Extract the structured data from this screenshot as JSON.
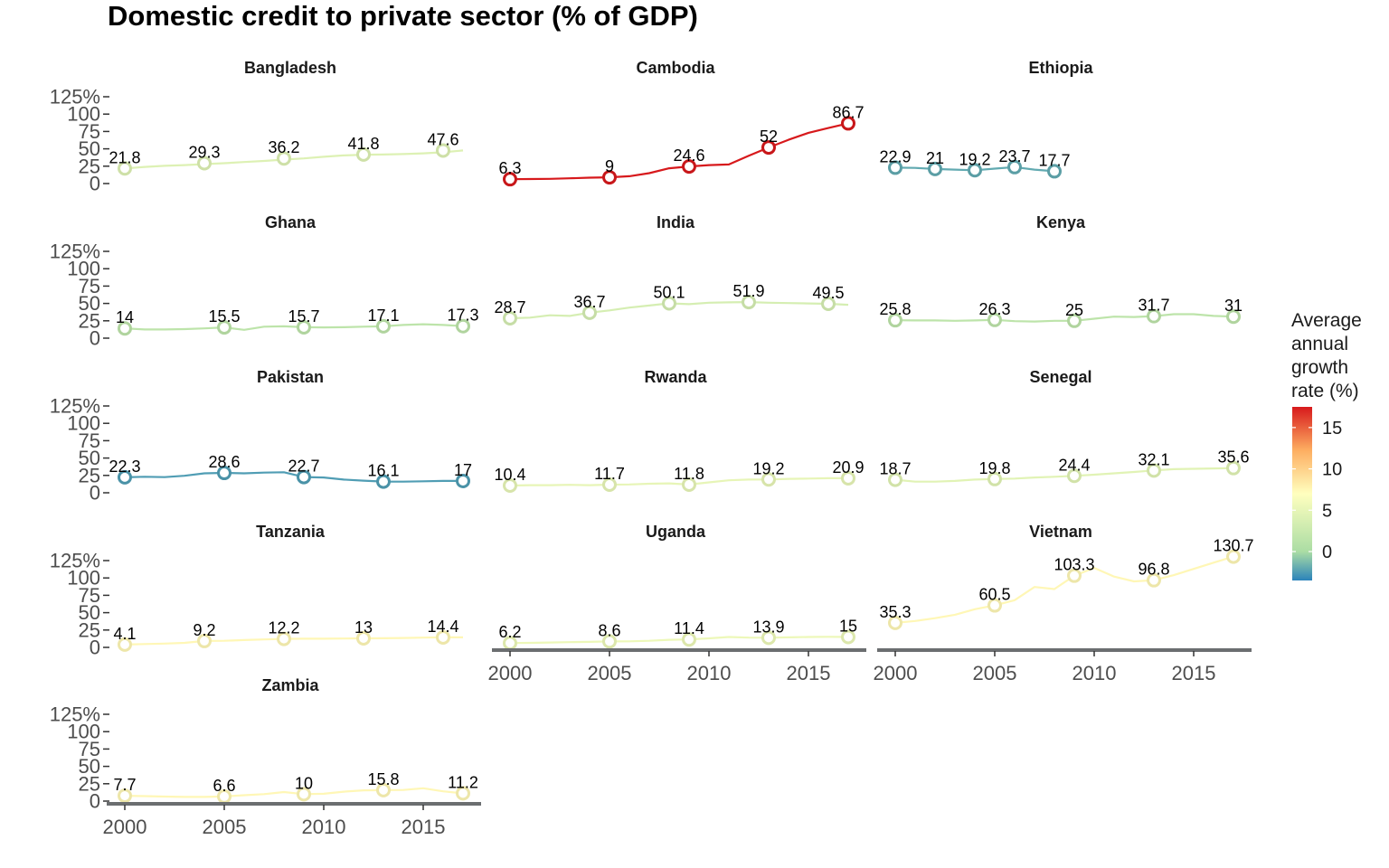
{
  "chart_data": {
    "type": "line",
    "title": "Domestic credit to private sector (% of GDP)",
    "y_ticks": [
      "0",
      "25",
      "50",
      "75",
      "100",
      "125%"
    ],
    "ylim": [
      0,
      125
    ],
    "x_ticks": [
      "2000",
      "2005",
      "2010",
      "2015"
    ],
    "xlim": [
      2000,
      2017
    ],
    "legend": {
      "title_lines": [
        "Average",
        "annual",
        "growth",
        "rate (%)"
      ],
      "ticks": [
        "0",
        "5",
        "10",
        "15"
      ],
      "range": [
        -3.5,
        17.5
      ],
      "placement": "right"
    },
    "panels": [
      {
        "name": "Bangladesh",
        "growth_rate": 4.2,
        "line": {
          "x": [
            2000,
            2001,
            2002,
            2003,
            2004,
            2005,
            2006,
            2007,
            2008,
            2009,
            2010,
            2011,
            2012,
            2013,
            2014,
            2015,
            2016,
            2017
          ],
          "y": [
            21.8,
            24,
            25.5,
            26.5,
            28,
            29.3,
            31,
            32.5,
            34.5,
            36.2,
            38.5,
            40.5,
            41.5,
            41.8,
            42.5,
            43.5,
            45,
            47.6
          ]
        },
        "points": {
          "x": [
            2000,
            2004,
            2008,
            2012,
            2016
          ],
          "y": [
            21.8,
            29.3,
            36.2,
            41.8,
            47.6
          ]
        }
      },
      {
        "name": "Cambodia",
        "growth_rate": 17.5,
        "line": {
          "x": [
            2000,
            2001,
            2002,
            2003,
            2004,
            2005,
            2006,
            2007,
            2008,
            2009,
            2010,
            2011,
            2012,
            2013,
            2014,
            2015,
            2016,
            2017
          ],
          "y": [
            6.3,
            6.5,
            6.8,
            7.5,
            8.5,
            9,
            10.5,
            15,
            22,
            24.6,
            26.5,
            27.5,
            40,
            52,
            63,
            73,
            80,
            86.7
          ]
        },
        "points": {
          "x": [
            2000,
            2005,
            2009,
            2013,
            2017
          ],
          "y": [
            6.3,
            9,
            24.6,
            52,
            86.7
          ]
        }
      },
      {
        "name": "Ethiopia",
        "growth_rate": -2.0,
        "line": {
          "x": [
            2000,
            2001,
            2002,
            2003,
            2004,
            2005,
            2006,
            2007,
            2008
          ],
          "y": [
            22.9,
            22.5,
            21,
            20,
            19.2,
            21.5,
            23.7,
            20,
            17.7
          ]
        },
        "points": {
          "x": [
            2000,
            2002,
            2004,
            2006,
            2008
          ],
          "y": [
            22.9,
            21,
            19.2,
            23.7,
            17.7
          ]
        }
      },
      {
        "name": "Ghana",
        "growth_rate": 1.5,
        "line": {
          "x": [
            2000,
            2001,
            2002,
            2003,
            2004,
            2005,
            2006,
            2007,
            2008,
            2009,
            2010,
            2011,
            2012,
            2013,
            2014,
            2015,
            2016,
            2017
          ],
          "y": [
            14,
            12.5,
            12.5,
            13,
            14,
            15.5,
            12,
            16.5,
            17,
            15.7,
            15.5,
            15.8,
            16.5,
            17.1,
            19,
            20,
            19,
            17.3
          ]
        },
        "points": {
          "x": [
            2000,
            2005,
            2009,
            2013,
            2017
          ],
          "y": [
            14,
            15.5,
            15.7,
            17.1,
            17.3
          ]
        }
      },
      {
        "name": "India",
        "growth_rate": 3.5,
        "line": {
          "x": [
            2000,
            2001,
            2002,
            2003,
            2004,
            2005,
            2006,
            2007,
            2008,
            2009,
            2010,
            2011,
            2012,
            2013,
            2014,
            2015,
            2016,
            2017
          ],
          "y": [
            28.7,
            29.5,
            33,
            32,
            36.7,
            40,
            44,
            47,
            50.1,
            49,
            51,
            51.5,
            51.9,
            51,
            50.5,
            50,
            49.5,
            48
          ]
        },
        "points": {
          "x": [
            2000,
            2004,
            2008,
            2012,
            2016
          ],
          "y": [
            28.7,
            36.7,
            50.1,
            51.9,
            49.5
          ]
        }
      },
      {
        "name": "Kenya",
        "growth_rate": 1.5,
        "line": {
          "x": [
            2000,
            2001,
            2002,
            2003,
            2004,
            2005,
            2006,
            2007,
            2008,
            2009,
            2010,
            2011,
            2012,
            2013,
            2014,
            2015,
            2016,
            2017
          ],
          "y": [
            25.8,
            25.5,
            25.5,
            25,
            25.5,
            26.3,
            24.5,
            24,
            25,
            25,
            28,
            31,
            30.5,
            31.7,
            34.5,
            34.5,
            32,
            31
          ]
        },
        "points": {
          "x": [
            2000,
            2005,
            2009,
            2013,
            2017
          ],
          "y": [
            25.8,
            26.3,
            25,
            31.7,
            31
          ]
        }
      },
      {
        "name": "Pakistan",
        "growth_rate": -2.5,
        "line": {
          "x": [
            2000,
            2001,
            2002,
            2003,
            2004,
            2005,
            2006,
            2007,
            2008,
            2009,
            2010,
            2011,
            2012,
            2013,
            2014,
            2015,
            2016,
            2017
          ],
          "y": [
            22.3,
            23,
            22.5,
            24.5,
            28,
            28.6,
            28,
            29,
            29.5,
            22.7,
            22,
            19,
            17.5,
            16.1,
            16,
            16.5,
            17,
            17
          ]
        },
        "points": {
          "x": [
            2000,
            2005,
            2009,
            2013,
            2017
          ],
          "y": [
            22.3,
            28.6,
            22.7,
            16.1,
            17
          ]
        }
      },
      {
        "name": "Rwanda",
        "growth_rate": 5.0,
        "line": {
          "x": [
            2000,
            2001,
            2002,
            2003,
            2004,
            2005,
            2006,
            2007,
            2008,
            2009,
            2010,
            2011,
            2012,
            2013,
            2014,
            2015,
            2016,
            2017
          ],
          "y": [
            10.4,
            11,
            11,
            11.5,
            11,
            11.7,
            12,
            13,
            13.5,
            11.8,
            15,
            18,
            19,
            19.2,
            20,
            20.5,
            21,
            20.9
          ]
        },
        "points": {
          "x": [
            2000,
            2005,
            2009,
            2013,
            2017
          ],
          "y": [
            10.4,
            11.7,
            11.8,
            19.2,
            20.9
          ]
        }
      },
      {
        "name": "Senegal",
        "growth_rate": 4.5,
        "line": {
          "x": [
            2000,
            2001,
            2002,
            2003,
            2004,
            2005,
            2006,
            2007,
            2008,
            2009,
            2010,
            2011,
            2012,
            2013,
            2014,
            2015,
            2016,
            2017
          ],
          "y": [
            18.7,
            16,
            16,
            17,
            19,
            19.8,
            20.5,
            22,
            23,
            24.4,
            26,
            28,
            30,
            32.1,
            34,
            34.5,
            35,
            35.6
          ]
        },
        "points": {
          "x": [
            2000,
            2005,
            2009,
            2013,
            2017
          ],
          "y": [
            18.7,
            19.8,
            24.4,
            32.1,
            35.6
          ]
        }
      },
      {
        "name": "Tanzania",
        "growth_rate": 7.5,
        "line": {
          "x": [
            2000,
            2001,
            2002,
            2003,
            2004,
            2005,
            2006,
            2007,
            2008,
            2009,
            2010,
            2011,
            2012,
            2013,
            2014,
            2015,
            2016,
            2017
          ],
          "y": [
            4.1,
            4.8,
            5.5,
            6.5,
            9.2,
            9.5,
            10.5,
            11.5,
            12.2,
            12.5,
            12.5,
            12.7,
            13,
            13.2,
            13.5,
            14,
            14.4,
            14.5
          ]
        },
        "points": {
          "x": [
            2000,
            2004,
            2008,
            2012,
            2016
          ],
          "y": [
            4.1,
            9.2,
            12.2,
            13,
            14.4
          ]
        }
      },
      {
        "name": "Uganda",
        "growth_rate": 5.5,
        "line": {
          "x": [
            2000,
            2001,
            2002,
            2003,
            2004,
            2005,
            2006,
            2007,
            2008,
            2009,
            2010,
            2011,
            2012,
            2013,
            2014,
            2015,
            2016,
            2017
          ],
          "y": [
            6.2,
            6.5,
            7,
            7.5,
            8,
            8.6,
            8.7,
            9.5,
            11,
            11.4,
            13,
            15,
            14,
            13.9,
            14.5,
            15,
            15.2,
            15
          ]
        },
        "points": {
          "x": [
            2000,
            2005,
            2009,
            2013,
            2017
          ],
          "y": [
            6.2,
            8.6,
            11.4,
            13.9,
            15
          ]
        }
      },
      {
        "name": "Vietnam",
        "growth_rate": 7.5,
        "line": {
          "x": [
            2000,
            2001,
            2002,
            2003,
            2004,
            2005,
            2006,
            2007,
            2008,
            2009,
            2010,
            2011,
            2012,
            2013,
            2014,
            2015,
            2016,
            2017
          ],
          "y": [
            35.3,
            38,
            42,
            47,
            55,
            60.5,
            68,
            87,
            84,
            103.3,
            114.5,
            102,
            95,
            96.8,
            104,
            113,
            122,
            130.7
          ]
        },
        "points": {
          "x": [
            2000,
            2005,
            2009,
            2013,
            2017
          ],
          "y": [
            35.3,
            60.5,
            103.3,
            96.8,
            130.7
          ]
        }
      },
      {
        "name": "Zambia",
        "growth_rate": 7.5,
        "line": {
          "x": [
            2000,
            2001,
            2002,
            2003,
            2004,
            2005,
            2006,
            2007,
            2008,
            2009,
            2010,
            2011,
            2012,
            2013,
            2014,
            2015,
            2016,
            2017
          ],
          "y": [
            7.7,
            7.2,
            6.5,
            6,
            6,
            6.6,
            8.5,
            10,
            13,
            10,
            10.5,
            13.5,
            15.5,
            15.8,
            16,
            18.5,
            14,
            11.2
          ]
        },
        "points": {
          "x": [
            2000,
            2005,
            2009,
            2013,
            2017
          ],
          "y": [
            7.7,
            6.6,
            10,
            15.8,
            11.2
          ]
        }
      }
    ]
  }
}
